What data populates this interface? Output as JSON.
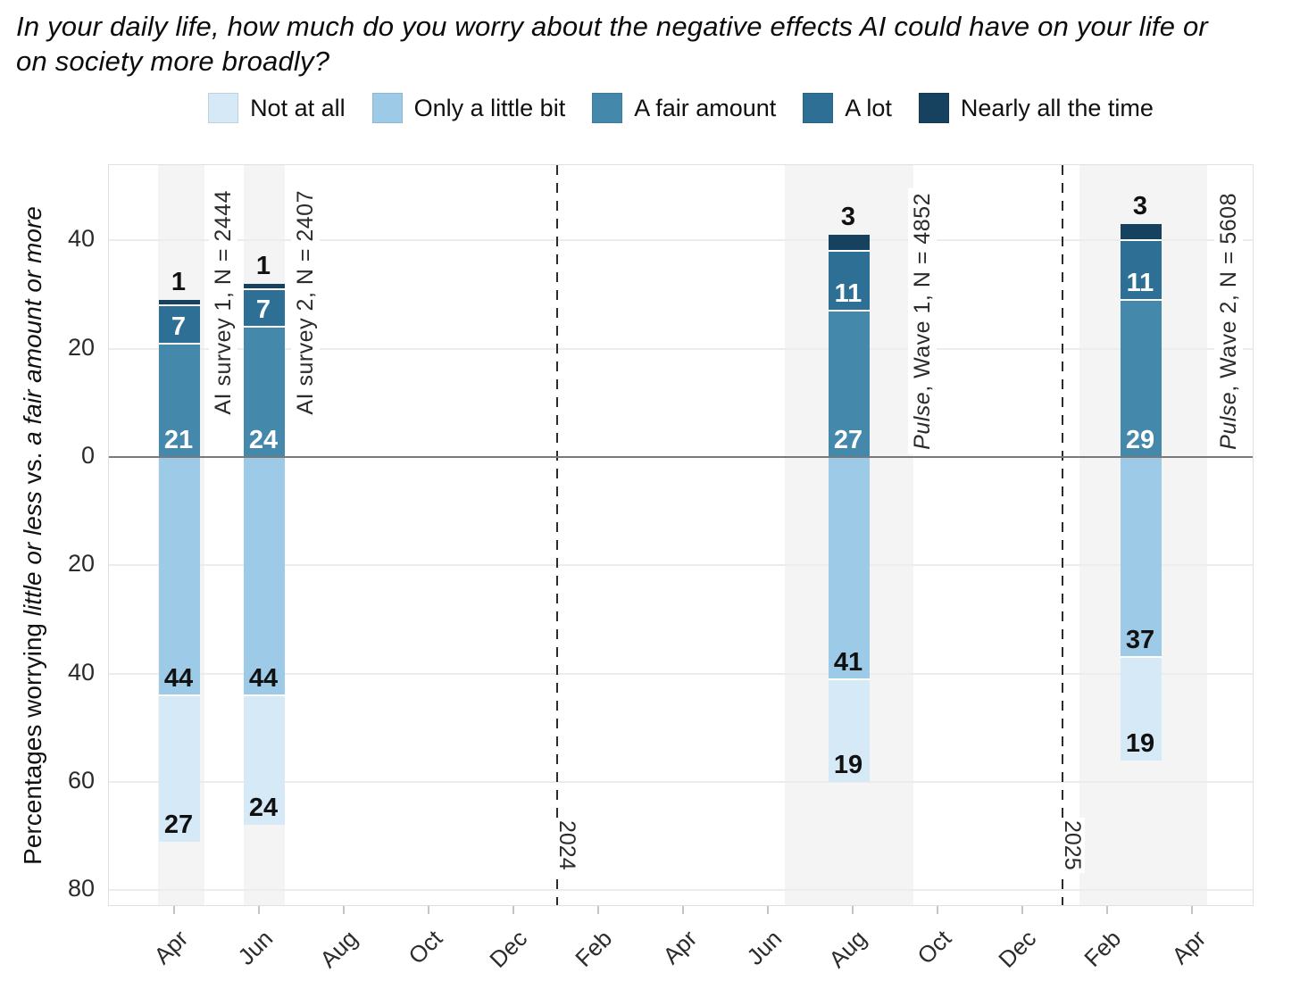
{
  "title": {
    "line1": "In your daily life, how much do you worry about the negative effects AI could have on your life or",
    "line2": "on society more broadly?"
  },
  "legend": {
    "items": [
      {
        "label": "Not at all",
        "color": "#d6e9f6"
      },
      {
        "label": "Only a little bit",
        "color": "#9dcbe7"
      },
      {
        "label": "A fair amount",
        "color": "#4488ab"
      },
      {
        "label": "A lot",
        "color": "#2e6f95"
      },
      {
        "label": "Nearly all the time",
        "color": "#16415f"
      }
    ]
  },
  "y_axis": {
    "title_parts": [
      {
        "text": "Percentages worrying ",
        "italic": false
      },
      {
        "text": "little or less",
        "italic": true
      },
      {
        "text": " vs. ",
        "italic": false
      },
      {
        "text": "a fair amount or more",
        "italic": true
      }
    ],
    "ticks": [
      {
        "value": 40,
        "label": "40"
      },
      {
        "value": 20,
        "label": "20"
      },
      {
        "value": 0,
        "label": "0"
      },
      {
        "value": -20,
        "label": "20"
      },
      {
        "value": -40,
        "label": "40"
      },
      {
        "value": -60,
        "label": "60"
      },
      {
        "value": -80,
        "label": "80"
      }
    ]
  },
  "x_axis": {
    "labels": [
      "Apr",
      "Jun",
      "Aug",
      "Oct",
      "Dec",
      "Feb",
      "Apr",
      "Jun",
      "Aug",
      "Oct",
      "Dec",
      "Feb",
      "Apr"
    ]
  },
  "year_markers": [
    {
      "label": "2024"
    },
    {
      "label": "2025"
    }
  ],
  "chart_data": {
    "type": "bar",
    "subtype": "diverging-stacked",
    "title": "In your daily life, how much do you worry about the negative effects AI could have on your life or on society more broadly?",
    "ylabel": "Percentages worrying little or less vs. a fair amount or more",
    "ylim": [
      -83,
      54
    ],
    "grid": "major-horizontal",
    "legend_position": "top",
    "categories_above_axis": [
      "A fair amount",
      "A lot",
      "Nearly all the time"
    ],
    "categories_below_axis": [
      "Only a little bit",
      "Not at all"
    ],
    "bars": [
      {
        "survey": "AI survey 1, N = 2444",
        "above": [
          21,
          7,
          1
        ],
        "below": [
          44,
          27
        ]
      },
      {
        "survey": "AI survey 2, N = 2407",
        "above": [
          24,
          7,
          1
        ],
        "below": [
          44,
          24
        ]
      },
      {
        "survey": "Pulse, Wave 1, N = 4852",
        "above": [
          27,
          11,
          3
        ],
        "below": [
          41,
          19
        ]
      },
      {
        "survey": "Pulse, Wave 2, N = 5608",
        "above": [
          29,
          11,
          3
        ],
        "below": [
          37,
          19
        ]
      }
    ]
  },
  "colors": {
    "not_at_all": "#d6e9f6",
    "only_a_little_bit": "#9dcbe7",
    "a_fair_amount": "#4488ab",
    "a_lot": "#2e6f95",
    "nearly_all_the_time": "#16415f",
    "zero_line": "#7a7a7a",
    "gridline": "#ececec",
    "field_period_band": "#f4f4f4",
    "dashed_year_line": "#2b2b2b",
    "panel_border": "#e0e0e0"
  }
}
